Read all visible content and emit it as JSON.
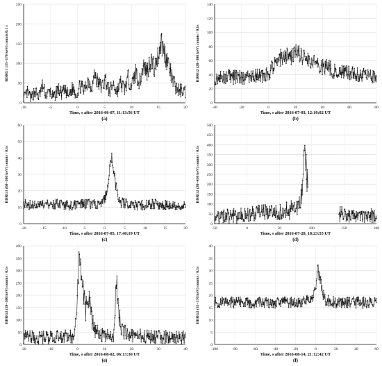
{
  "chart_data": [
    {
      "panel": "(a)",
      "type": "line",
      "color": "#000000",
      "ylabel": "BDRG1 (35−170 keV) counts/0.1 s",
      "xlabel": "Time, s after 2016-06-07, 11:13:56 UT",
      "xlim": [
        -10,
        20
      ],
      "ylim": [
        0,
        250
      ],
      "xticks": [
        -10,
        -5,
        0,
        5,
        10,
        15,
        20
      ],
      "yticks": [
        0,
        50,
        100,
        150,
        200,
        250
      ],
      "grid": true,
      "series": [
        {
          "name": "",
          "points": [
            [
              -10,
              10
            ],
            [
              -9.3,
              26
            ],
            [
              -8.6,
              12
            ],
            [
              -7.9,
              30
            ],
            [
              -7.2,
              15
            ],
            [
              -6.5,
              42
            ],
            [
              -5.8,
              20
            ],
            [
              -5.1,
              28
            ],
            [
              -4.4,
              12
            ],
            [
              -3.7,
              35
            ],
            [
              -3,
              24
            ],
            [
              -2.3,
              30
            ],
            [
              -1.6,
              18
            ],
            [
              -0.9,
              38
            ],
            [
              -0.2,
              22
            ],
            [
              0.5,
              44
            ],
            [
              1.2,
              30
            ],
            [
              1.9,
              58
            ],
            [
              2.6,
              40
            ],
            [
              3.2,
              72
            ],
            [
              3.8,
              50
            ],
            [
              4.5,
              40
            ],
            [
              5.2,
              60
            ],
            [
              5.9,
              26
            ],
            [
              6.6,
              48
            ],
            [
              7.3,
              28
            ],
            [
              8,
              50
            ],
            [
              8.7,
              35
            ],
            [
              9.4,
              62
            ],
            [
              10.1,
              45
            ],
            [
              10.8,
              78
            ],
            [
              11.5,
              50
            ],
            [
              12.2,
              95
            ],
            [
              12.9,
              80
            ],
            [
              13.6,
              110
            ],
            [
              14.3,
              85
            ],
            [
              14.9,
              120
            ],
            [
              15.5,
              155
            ],
            [
              16.1,
              128
            ],
            [
              16.8,
              100
            ],
            [
              17.5,
              60
            ],
            [
              18.2,
              40
            ],
            [
              18.9,
              30
            ],
            [
              19.5,
              34
            ],
            [
              20,
              28
            ]
          ]
        }
      ]
    },
    {
      "panel": "(b)",
      "type": "line",
      "color": "#000000",
      "ylabel": "BDRG2 (20−300 keV) counts / 0.1s",
      "xlabel": "Time, s after 2016-07-03, 12:10:02 UT",
      "xlim": [
        -40,
        80
      ],
      "ylim": [
        0,
        140
      ],
      "xticks": [
        -40,
        -20,
        0,
        20,
        40,
        60,
        80
      ],
      "yticks": [
        0,
        20,
        40,
        60,
        80,
        100,
        120,
        140
      ],
      "grid": true,
      "series": [
        {
          "name": "",
          "points": [
            [
              -40,
              35
            ],
            [
              -30,
              37
            ],
            [
              -20,
              36
            ],
            [
              -10,
              38
            ],
            [
              0,
              40
            ],
            [
              4,
              55
            ],
            [
              8,
              62
            ],
            [
              12,
              70
            ],
            [
              16,
              65
            ],
            [
              20,
              72
            ],
            [
              24,
              68
            ],
            [
              28,
              60
            ],
            [
              32,
              62
            ],
            [
              36,
              55
            ],
            [
              40,
              50
            ],
            [
              44,
              52
            ],
            [
              48,
              45
            ],
            [
              52,
              48
            ],
            [
              56,
              44
            ],
            [
              60,
              42
            ],
            [
              64,
              40
            ],
            [
              68,
              40
            ],
            [
              72,
              38
            ],
            [
              76,
              37
            ],
            [
              80,
              36
            ]
          ]
        }
      ]
    },
    {
      "panel": "(c)",
      "type": "line",
      "color": "#000000",
      "ylabel": "BDRG1 (60−300 keV) counts / 0.1s",
      "xlabel": "Time, s after 2016-07-05, 17:40:19 UT",
      "xlim": [
        -20,
        20
      ],
      "ylim": [
        0,
        60
      ],
      "xticks": [
        -20,
        -15,
        -10,
        -5,
        0,
        5,
        10,
        15,
        20
      ],
      "yticks": [
        0,
        10,
        20,
        30,
        40,
        50,
        60
      ],
      "grid": true,
      "series": [
        {
          "name": "",
          "points": [
            [
              -20,
              12
            ],
            [
              -16,
              11
            ],
            [
              -12,
              12
            ],
            [
              -8,
              11
            ],
            [
              -4,
              12
            ],
            [
              -1,
              12
            ],
            [
              0,
              14
            ],
            [
              0.6,
              20
            ],
            [
              1.1,
              30
            ],
            [
              1.6,
              42
            ],
            [
              2.1,
              35
            ],
            [
              2.7,
              25
            ],
            [
              3.3,
              16
            ],
            [
              4,
              13
            ],
            [
              8,
              11
            ],
            [
              12,
              12
            ],
            [
              16,
              11
            ],
            [
              20,
              11
            ]
          ]
        }
      ]
    },
    {
      "panel": "(d)",
      "type": "line",
      "color": "#000000",
      "ylabel": "BDRG2 (20−450 keV) counts / 0.1s",
      "xlabel": "Time, s after 2016-07-20, 18:23:55 UT",
      "xlim": [
        -50,
        200
      ],
      "ylim": [
        0,
        500
      ],
      "xticks": [
        -50,
        0,
        50,
        100,
        150,
        200
      ],
      "yticks": [
        0,
        50,
        100,
        150,
        200,
        250,
        300,
        350,
        400,
        450,
        500
      ],
      "grid": true,
      "series": [
        {
          "name": "",
          "points": [
            [
              -50,
              35
            ],
            [
              -25,
              38
            ],
            [
              0,
              45
            ],
            [
              25,
              55
            ],
            [
              50,
              62
            ],
            [
              70,
              70
            ],
            [
              78,
              75
            ],
            [
              82,
              100
            ],
            [
              85,
              170
            ],
            [
              87,
              260
            ],
            [
              88.5,
              330
            ],
            [
              89.5,
              410
            ],
            [
              90.5,
              360
            ],
            [
              91.5,
              280
            ],
            [
              92.5,
              230
            ],
            [
              93.5,
              260
            ],
            [
              94,
              230
            ]
          ]
        },
        {
          "name": "",
          "points": [
            [
              142,
              50
            ],
            [
              160,
              45
            ],
            [
              180,
              43
            ],
            [
              200,
              40
            ]
          ]
        }
      ]
    },
    {
      "panel": "(e)",
      "type": "line",
      "color": "#000000",
      "ylabel": "BDRG2 (20−300 keV) counts / 0.1s",
      "xlabel": "Time, s after 2016-08-02, 06:13:30 UT",
      "xlim": [
        -20,
        40
      ],
      "ylim": [
        0,
        400
      ],
      "xticks": [
        -20,
        -10,
        0,
        10,
        20,
        30,
        40
      ],
      "yticks": [
        0,
        50,
        100,
        150,
        200,
        250,
        300,
        350,
        400
      ],
      "grid": true,
      "series": [
        {
          "name": "",
          "points": [
            [
              -20,
              30
            ],
            [
              -10,
              30
            ],
            [
              -2,
              32
            ],
            [
              -1,
              45
            ],
            [
              -0.3,
              150
            ],
            [
              0.3,
              300
            ],
            [
              0.7,
              335
            ],
            [
              1.2,
              305
            ],
            [
              1.8,
              250
            ],
            [
              2.4,
              190
            ],
            [
              3,
              135
            ],
            [
              3.6,
              170
            ],
            [
              4.2,
              195
            ],
            [
              4.8,
              140
            ],
            [
              5.6,
              85
            ],
            [
              6.6,
              55
            ],
            [
              8,
              40
            ],
            [
              10,
              34
            ],
            [
              12,
              33
            ],
            [
              13.3,
              40
            ],
            [
              13.8,
              120
            ],
            [
              14.3,
              275
            ],
            [
              14.8,
              200
            ],
            [
              15.4,
              120
            ],
            [
              16,
              75
            ],
            [
              17,
              50
            ],
            [
              19,
              38
            ],
            [
              25,
              32
            ],
            [
              32,
              30
            ],
            [
              40,
              30
            ]
          ]
        }
      ]
    },
    {
      "panel": "(f)",
      "type": "line",
      "color": "#000000",
      "ylabel": "BDRG2 (35−170 keV) counts / 0.1s",
      "xlabel": "Time, s after 2016-08-14, 21:12:42 UT",
      "xlim": [
        -100,
        60
      ],
      "ylim": [
        0,
        40
      ],
      "xticks": [
        -100,
        -80,
        -60,
        -40,
        -20,
        0,
        20,
        40,
        60
      ],
      "yticks": [
        0,
        5,
        10,
        15,
        20,
        25,
        30,
        35,
        40
      ],
      "grid": true,
      "series": [
        {
          "name": "",
          "points": [
            [
              -100,
              17
            ],
            [
              -80,
              17
            ],
            [
              -60,
              17
            ],
            [
              -40,
              17
            ],
            [
              -20,
              17
            ],
            [
              -5,
              18
            ],
            [
              0,
              22
            ],
            [
              2,
              30
            ],
            [
              4,
              28
            ],
            [
              6,
              22
            ],
            [
              10,
              18
            ],
            [
              20,
              17
            ],
            [
              40,
              17
            ],
            [
              60,
              17
            ]
          ]
        }
      ]
    }
  ]
}
